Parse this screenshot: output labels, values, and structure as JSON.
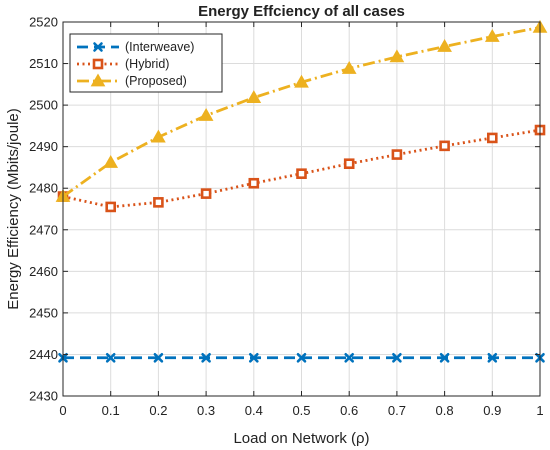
{
  "chart_data": {
    "type": "line",
    "title": "Energy Effciency of all cases",
    "xlabel": "Load on Network (ρ)",
    "ylabel": "Energy Efficiency (Mbits/joule)",
    "x": [
      0,
      0.1,
      0.2,
      0.3,
      0.4,
      0.5,
      0.6,
      0.7,
      0.8,
      0.9,
      1
    ],
    "x_ticks": [
      "0",
      "0.1",
      "0.2",
      "0.3",
      "0.4",
      "0.5",
      "0.6",
      "0.7",
      "0.8",
      "0.9",
      "1"
    ],
    "xlim": [
      0,
      1
    ],
    "ylim": [
      2430,
      2520
    ],
    "y_ticks": [
      "2430",
      "2440",
      "2450",
      "2460",
      "2470",
      "2480",
      "2490",
      "2500",
      "2510",
      "2520"
    ],
    "grid": true,
    "legend_position": "top-left",
    "series": [
      {
        "name": "(Interweave)",
        "color": "#0072BD",
        "line_style": "dashed",
        "marker": "x",
        "values": [
          2439.2,
          2439.2,
          2439.2,
          2439.2,
          2439.2,
          2439.2,
          2439.2,
          2439.2,
          2439.2,
          2439.2,
          2439.2
        ]
      },
      {
        "name": "(Hybrid)",
        "color": "#D95319",
        "line_style": "dotted",
        "marker": "square",
        "values": [
          2478.0,
          2475.5,
          2476.6,
          2478.7,
          2481.2,
          2483.5,
          2485.9,
          2488.1,
          2490.2,
          2492.1,
          2494.0
        ]
      },
      {
        "name": "(Proposed)",
        "color": "#EDB120",
        "line_style": "dashdot",
        "marker": "triangle",
        "values": [
          2478.0,
          2486.2,
          2492.3,
          2497.5,
          2501.8,
          2505.5,
          2508.8,
          2511.6,
          2514.1,
          2516.5,
          2518.7
        ]
      }
    ]
  }
}
